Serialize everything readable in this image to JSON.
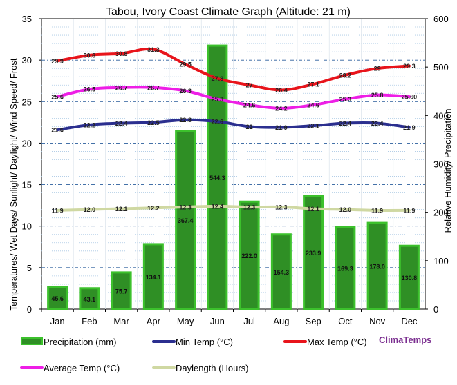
{
  "chart_data": {
    "type": "bar",
    "title": "Tabou, Ivory Coast Climate Graph (Altitude: 21 m)",
    "ylabel": "Temperatures/ Wet Days/ Sunlight/ Daylight/ Wind Speed/ Frost",
    "y2label": "Relative Humidity/ Precipitation",
    "ylim": [
      0,
      35
    ],
    "y2lim": [
      0,
      600
    ],
    "yticks": [
      0,
      5,
      10,
      15,
      20,
      25,
      30,
      35
    ],
    "y2ticks": [
      0,
      100,
      200,
      300,
      400,
      500,
      600
    ],
    "categories": [
      "Jan",
      "Feb",
      "Mar",
      "Apr",
      "May",
      "Jun",
      "Jul",
      "Aug",
      "Sep",
      "Oct",
      "Nov",
      "Dec"
    ],
    "grid": true,
    "legend_position": "bottom",
    "series": [
      {
        "name": "Precipitation (mm)",
        "kind": "bar",
        "axis": "right",
        "color": "#2e8b22",
        "values": [
          45.6,
          43.1,
          75.7,
          134.1,
          367.4,
          544.3,
          222.0,
          154.3,
          233.9,
          169.3,
          178.0,
          130.8
        ],
        "labels": [
          "45.6",
          "43.1",
          "75.7",
          "134.1",
          "367.4",
          "544.3",
          "222.0",
          "154.3",
          "233.9",
          "169.3",
          "178.0",
          "130.8"
        ]
      },
      {
        "name": "Min Temp (°C)",
        "kind": "line",
        "axis": "left",
        "color": "#2b2f8f",
        "values": [
          21.6,
          22.2,
          22.4,
          22.5,
          22.8,
          22.6,
          22.0,
          21.9,
          22.1,
          22.4,
          22.4,
          21.9
        ],
        "labels": [
          "21.6",
          "22.2",
          "22.4",
          "22.5",
          "22.8",
          "22.6",
          "22",
          "21.9",
          "22.1",
          "22.4",
          "22.4",
          "21.9"
        ]
      },
      {
        "name": "Max Temp (°C)",
        "kind": "line",
        "axis": "left",
        "color": "#e8141b",
        "values": [
          29.9,
          30.6,
          30.8,
          31.3,
          29.5,
          27.8,
          27.0,
          26.4,
          27.1,
          28.2,
          29.0,
          29.3
        ],
        "labels": [
          "29.9",
          "30.6",
          "30.8",
          "31.3",
          "29.5",
          "27.8",
          "27",
          "26.4",
          "27.1",
          "28.2",
          "29",
          "29.3"
        ]
      },
      {
        "name": "Average Temp (°C)",
        "kind": "line",
        "axis": "left",
        "color": "#ee1ee6",
        "values": [
          25.6,
          26.5,
          26.7,
          26.7,
          26.3,
          25.3,
          24.6,
          24.2,
          24.6,
          25.3,
          25.8,
          25.6
        ],
        "labels": [
          "25.6",
          "26.5",
          "26.7",
          "26.7",
          "26.3",
          "25.3",
          "24.6",
          "24.2",
          "24.6",
          "25.3",
          "25.8",
          "25.60"
        ]
      },
      {
        "name": "Daylength (Hours)",
        "kind": "line",
        "axis": "left",
        "color": "#cfd8a2",
        "values": [
          11.9,
          12.0,
          12.1,
          12.2,
          12.3,
          12.4,
          12.3,
          12.3,
          12.1,
          12.0,
          11.9,
          11.9
        ],
        "labels": [
          "11.9",
          "12.0",
          "12.1",
          "12.2",
          "12.3",
          "12.4",
          "12.3",
          "12.3",
          "12.1",
          "12.0",
          "11.9",
          "11.9"
        ]
      }
    ],
    "legend": [
      {
        "label": "Precipitation (mm)",
        "swatch": "bar",
        "color": "#2e8b22"
      },
      {
        "label": "Min Temp (°C)",
        "swatch": "line",
        "color": "#2b2f8f"
      },
      {
        "label": "Max Temp (°C)",
        "swatch": "line",
        "color": "#e8141b"
      },
      {
        "label": "Average Temp (°C)",
        "swatch": "line",
        "color": "#ee1ee6"
      },
      {
        "label": "Daylength (Hours)",
        "swatch": "line",
        "color": "#cfd8a2"
      }
    ],
    "brand": {
      "text": "ClimaTemps",
      "color": "#7a2d8f"
    }
  }
}
